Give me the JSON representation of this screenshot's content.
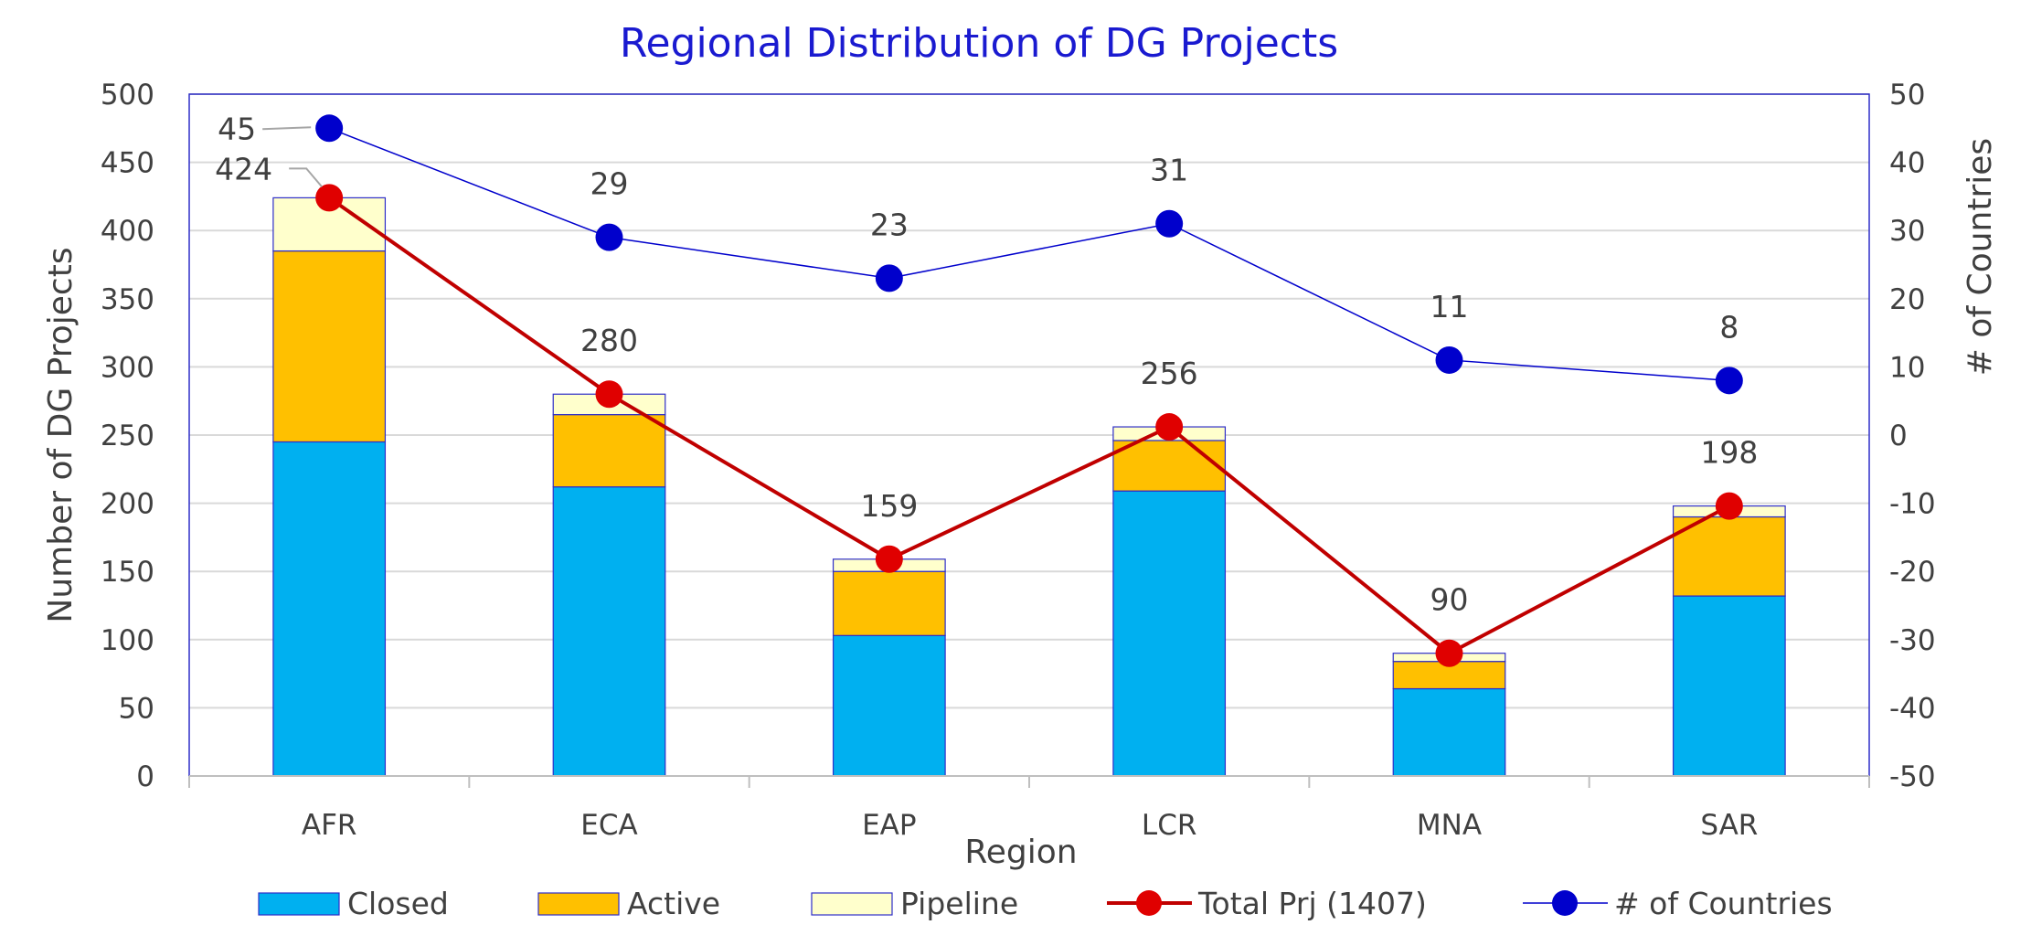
{
  "chart_data": {
    "type": "bar",
    "title": "Regional Distribution of DG Projects",
    "xlabel": "Region",
    "ylabel": "Number of DG Projects",
    "y2label": "# of Countries",
    "ylim": [
      0,
      500
    ],
    "y2lim": [
      -50,
      50
    ],
    "yticks": [
      "0",
      "50",
      "100",
      "150",
      "200",
      "250",
      "300",
      "350",
      "400",
      "450",
      "500"
    ],
    "y2ticks": [
      "-50",
      "-40",
      "-30",
      "-20",
      "-10",
      "0",
      "10",
      "20",
      "30",
      "40",
      "50"
    ],
    "stacked": true,
    "grid": true,
    "legend_position": "bottom",
    "categories": [
      "AFR",
      "ECA",
      "EAP",
      "LCR",
      "MNA",
      "SAR"
    ],
    "series": [
      {
        "name": "Closed",
        "type": "bar",
        "color": "#00b0f0",
        "values": [
          245,
          212,
          103,
          209,
          64,
          132
        ]
      },
      {
        "name": "Active",
        "type": "bar",
        "color": "#ffc000",
        "values": [
          140,
          53,
          47,
          37,
          20,
          58
        ]
      },
      {
        "name": "Pipeline",
        "type": "bar",
        "color": "#ffffcc",
        "values": [
          39,
          15,
          9,
          10,
          6,
          8
        ]
      },
      {
        "name": "Total Prj (1407)",
        "type": "line",
        "axis": "left",
        "color": "#e00000",
        "values": [
          424,
          280,
          159,
          256,
          90,
          198
        ],
        "labels": [
          "424",
          "280",
          "159",
          "256",
          "90",
          "198"
        ]
      },
      {
        "name": "# of Countries",
        "type": "line",
        "axis": "right",
        "color": "#0000cc",
        "values": [
          45,
          29,
          23,
          31,
          11,
          8
        ],
        "labels": [
          "45",
          "29",
          "23",
          "31",
          "11",
          "8"
        ]
      }
    ]
  }
}
